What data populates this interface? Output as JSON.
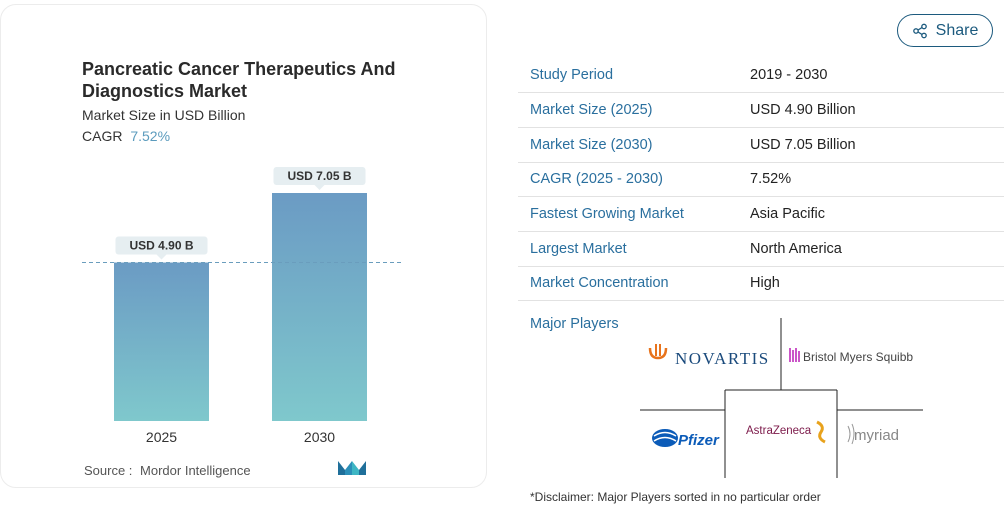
{
  "chart_data": {
    "type": "bar",
    "title": "Pancreatic Cancer Therapeutics And Diagnostics Market",
    "subtitle": "Market Size in USD Billion",
    "cagr_label": "CAGR",
    "cagr_value": "7.52%",
    "categories": [
      "2025",
      "2030"
    ],
    "values": [
      4.9,
      7.05
    ],
    "data_labels": [
      "USD 4.90 B",
      "USD 7.05 B"
    ],
    "ylim": [
      0,
      7.05
    ],
    "reference_line": 4.9,
    "colors": {
      "bar_top": "#6b9bc4",
      "bar_bottom": "#7fc8cc",
      "ref_line": "#6a9dbd",
      "label_bg": "#e6eef1"
    }
  },
  "source": {
    "label": "Source :",
    "name": "Mordor Intelligence"
  },
  "share": {
    "label": "Share",
    "icon": "share-icon"
  },
  "facts": [
    {
      "key": "Study Period",
      "value": "2019 - 2030"
    },
    {
      "key": "Market Size (2025)",
      "value": "USD 4.90 Billion"
    },
    {
      "key": "Market Size (2030)",
      "value": "USD 7.05 Billion"
    },
    {
      "key": "CAGR (2025 - 2030)",
      "value": "7.52%"
    },
    {
      "key": "Fastest Growing Market",
      "value": "Asia Pacific"
    },
    {
      "key": "Largest Market",
      "value": "North America"
    },
    {
      "key": "Market Concentration",
      "value": "High"
    }
  ],
  "players": {
    "label": "Major Players",
    "logos": [
      "NOVARTIS",
      "Bristol Myers Squibb",
      "Pfizer",
      "AstraZeneca",
      "myriad"
    ]
  },
  "disclaimer": "*Disclaimer: Major Players sorted in no particular order"
}
